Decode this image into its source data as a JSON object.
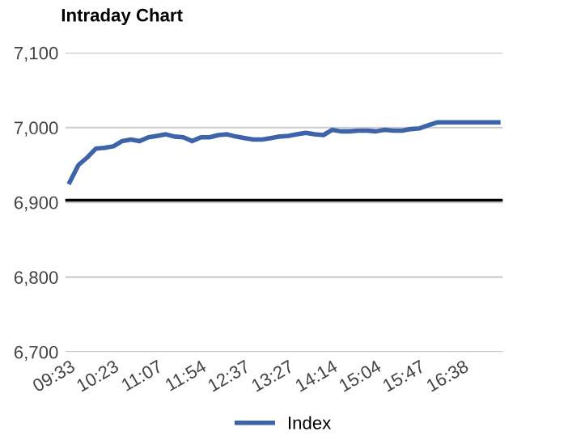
{
  "chart_data": {
    "type": "line",
    "title": "Intraday Chart",
    "categories": [
      "09:33",
      null,
      null,
      null,
      null,
      "10:23",
      null,
      null,
      null,
      null,
      "11:07",
      null,
      null,
      null,
      null,
      "11:54",
      null,
      null,
      null,
      null,
      "12:37",
      null,
      null,
      null,
      null,
      "13:27",
      null,
      null,
      null,
      null,
      "14:14",
      null,
      null,
      null,
      null,
      "15:04",
      null,
      null,
      null,
      null,
      "15:47",
      null,
      null,
      null,
      null,
      "16:38",
      null,
      null,
      null,
      null
    ],
    "series": [
      {
        "name": "Index",
        "color": "#3d64a8",
        "values": [
          6927,
          6950,
          6960,
          6972,
          6973,
          6975,
          6982,
          6984,
          6982,
          6987,
          6989,
          6991,
          6988,
          6987,
          6982,
          6987,
          6987,
          6990,
          6991,
          6988,
          6986,
          6984,
          6984,
          6986,
          6988,
          6989,
          6991,
          6993,
          6991,
          6990,
          6997,
          6995,
          6995,
          6996,
          6996,
          6995,
          6997,
          6996,
          6996,
          6998,
          6999,
          7003,
          7007,
          7007,
          7007,
          7007,
          7007,
          7007,
          7007,
          7007
        ]
      }
    ],
    "ylim": [
      6700,
      7100
    ],
    "yticks": [
      {
        "value": 6700,
        "label": "6,700"
      },
      {
        "value": 6800,
        "label": "6,800"
      },
      {
        "value": 6900,
        "label": "6,900"
      },
      {
        "value": 7000,
        "label": "7,000"
      },
      {
        "value": 7100,
        "label": "7,100"
      }
    ],
    "ref_lines": [
      {
        "axis": "y",
        "value": 6903,
        "color": "#000000"
      }
    ],
    "grid": "y",
    "legend": "bottom",
    "marker": "none",
    "line_style": "solid"
  }
}
